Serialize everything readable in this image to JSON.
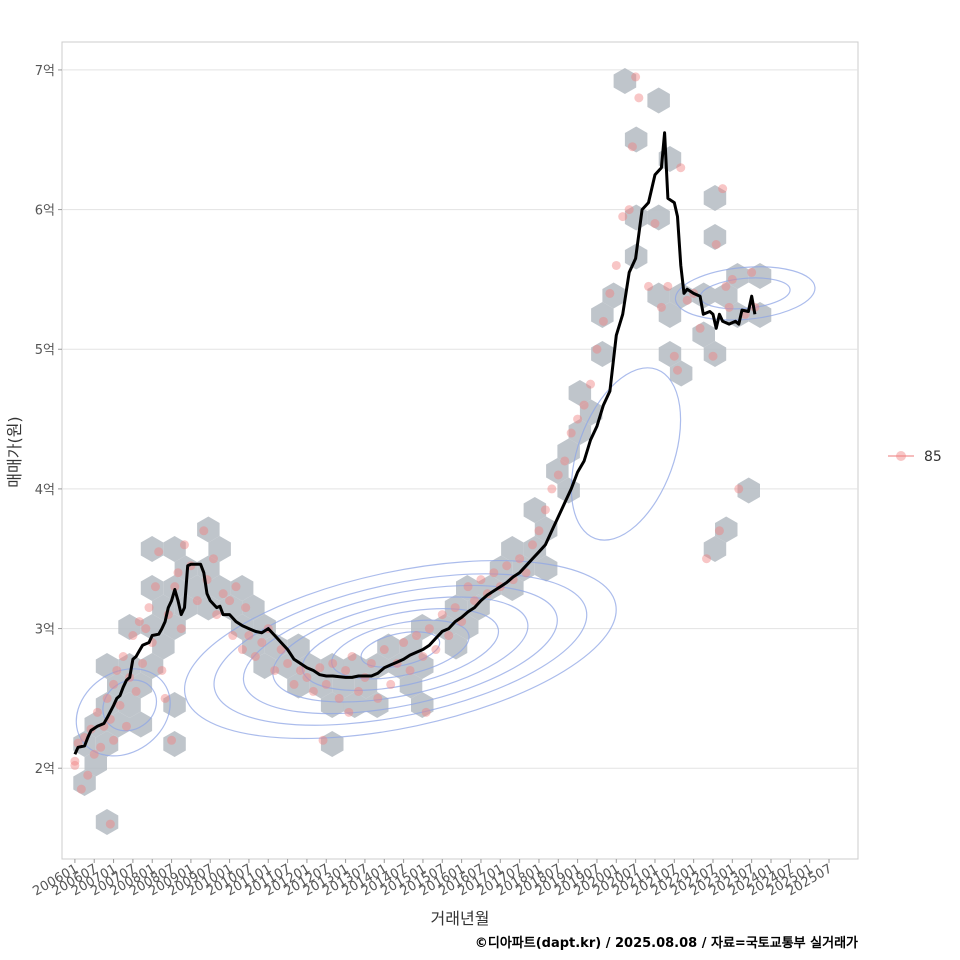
{
  "chart_data": {
    "type": "line",
    "xlabel": "거래년월",
    "ylabel": "매매가(원)",
    "caption": "©디아파트(dapt.kr) / 2025.08.08 / 자료=국토교통부 실거래가",
    "x_ticks": [
      "200601",
      "200607",
      "200701",
      "200707",
      "200801",
      "200807",
      "200901",
      "200907",
      "201001",
      "201007",
      "201101",
      "201107",
      "201201",
      "201207",
      "201301",
      "201307",
      "201401",
      "201407",
      "201501",
      "201507",
      "201601",
      "201607",
      "201701",
      "201707",
      "201801",
      "201807",
      "201901",
      "201907",
      "202001",
      "202007",
      "202101",
      "202107",
      "202201",
      "202207",
      "202301",
      "202307",
      "202401",
      "202407",
      "202501",
      "202507"
    ],
    "y_ticks": [
      {
        "value": 2,
        "label": "2억"
      },
      {
        "value": 3,
        "label": "3억"
      },
      {
        "value": 4,
        "label": "4억"
      },
      {
        "value": 5,
        "label": "5억"
      },
      {
        "value": 6,
        "label": "6억"
      },
      {
        "value": 7,
        "label": "7억"
      }
    ],
    "xlim": [
      "200509",
      "202604"
    ],
    "ylim": [
      1.35,
      7.2
    ],
    "grid": true,
    "legend": {
      "position": "right",
      "label": "85"
    },
    "colors": {
      "line": "#000000",
      "points": "#f08080",
      "hex": "#b4bbc2",
      "contour": "#8fa6e6",
      "grid": "#e3e3e3"
    },
    "series": [
      {
        "values": [
          [
            "200601",
            2.1
          ],
          [
            "200602",
            2.15
          ],
          [
            "200604",
            2.16
          ],
          [
            "200605",
            2.22
          ],
          [
            "200606",
            2.27
          ],
          [
            "200608",
            2.3
          ],
          [
            "200610",
            2.32
          ],
          [
            "200611",
            2.36
          ],
          [
            "200701",
            2.45
          ],
          [
            "200702",
            2.5
          ],
          [
            "200703",
            2.52
          ],
          [
            "200704",
            2.58
          ],
          [
            "200705",
            2.63
          ],
          [
            "200706",
            2.65
          ],
          [
            "200707",
            2.78
          ],
          [
            "200708",
            2.8
          ],
          [
            "200709",
            2.84
          ],
          [
            "200710",
            2.88
          ],
          [
            "200712",
            2.9
          ],
          [
            "200801",
            2.95
          ],
          [
            "200803",
            2.96
          ],
          [
            "200804",
            3.0
          ],
          [
            "200805",
            3.05
          ],
          [
            "200806",
            3.15
          ],
          [
            "200807",
            3.2
          ],
          [
            "200808",
            3.28
          ],
          [
            "200809",
            3.2
          ],
          [
            "200810",
            3.1
          ],
          [
            "200811",
            3.15
          ],
          [
            "200812",
            3.45
          ],
          [
            "200901",
            3.46
          ],
          [
            "200904",
            3.46
          ],
          [
            "200905",
            3.4
          ],
          [
            "200906",
            3.25
          ],
          [
            "200907",
            3.2
          ],
          [
            "200909",
            3.15
          ],
          [
            "200910",
            3.16
          ],
          [
            "200911",
            3.1
          ],
          [
            "201001",
            3.1
          ],
          [
            "201003",
            3.05
          ],
          [
            "201005",
            3.02
          ],
          [
            "201007",
            3.0
          ],
          [
            "201009",
            2.98
          ],
          [
            "201011",
            2.97
          ],
          [
            "201101",
            3.0
          ],
          [
            "201103",
            2.95
          ],
          [
            "201105",
            2.9
          ],
          [
            "201107",
            2.85
          ],
          [
            "201109",
            2.78
          ],
          [
            "201111",
            2.75
          ],
          [
            "201201",
            2.72
          ],
          [
            "201203",
            2.7
          ],
          [
            "201205",
            2.67
          ],
          [
            "201207",
            2.66
          ],
          [
            "201209",
            2.66
          ],
          [
            "201301",
            2.65
          ],
          [
            "201303",
            2.65
          ],
          [
            "201305",
            2.66
          ],
          [
            "201307",
            2.66
          ],
          [
            "201309",
            2.66
          ],
          [
            "201311",
            2.68
          ],
          [
            "201401",
            2.72
          ],
          [
            "201403",
            2.74
          ],
          [
            "201405",
            2.76
          ],
          [
            "201407",
            2.78
          ],
          [
            "201409",
            2.81
          ],
          [
            "201411",
            2.83
          ],
          [
            "201501",
            2.85
          ],
          [
            "201503",
            2.88
          ],
          [
            "201505",
            2.93
          ],
          [
            "201507",
            2.98
          ],
          [
            "201509",
            3.0
          ],
          [
            "201511",
            3.05
          ],
          [
            "201601",
            3.08
          ],
          [
            "201603",
            3.12
          ],
          [
            "201605",
            3.15
          ],
          [
            "201607",
            3.2
          ],
          [
            "201609",
            3.24
          ],
          [
            "201611",
            3.27
          ],
          [
            "201701",
            3.3
          ],
          [
            "201703",
            3.33
          ],
          [
            "201705",
            3.37
          ],
          [
            "201707",
            3.4
          ],
          [
            "201709",
            3.45
          ],
          [
            "201711",
            3.5
          ],
          [
            "201801",
            3.55
          ],
          [
            "201803",
            3.6
          ],
          [
            "201805",
            3.7
          ],
          [
            "201807",
            3.8
          ],
          [
            "201809",
            3.9
          ],
          [
            "201811",
            4.0
          ],
          [
            "201901",
            4.12
          ],
          [
            "201903",
            4.2
          ],
          [
            "201905",
            4.35
          ],
          [
            "201907",
            4.45
          ],
          [
            "201909",
            4.6
          ],
          [
            "201911",
            4.7
          ],
          [
            "202001",
            5.1
          ],
          [
            "202003",
            5.25
          ],
          [
            "202005",
            5.55
          ],
          [
            "202007",
            5.65
          ],
          [
            "202009",
            6.0
          ],
          [
            "202011",
            6.05
          ],
          [
            "202101",
            6.25
          ],
          [
            "202103",
            6.3
          ],
          [
            "202104",
            6.55
          ],
          [
            "202105",
            6.08
          ],
          [
            "202107",
            6.05
          ],
          [
            "202108",
            5.95
          ],
          [
            "202109",
            5.6
          ],
          [
            "202110",
            5.4
          ],
          [
            "202111",
            5.43
          ],
          [
            "202201",
            5.4
          ],
          [
            "202203",
            5.38
          ],
          [
            "202204",
            5.25
          ],
          [
            "202206",
            5.27
          ],
          [
            "202207",
            5.25
          ],
          [
            "202208",
            5.15
          ],
          [
            "202209",
            5.25
          ],
          [
            "202210",
            5.2
          ],
          [
            "202212",
            5.18
          ],
          [
            "202302",
            5.2
          ],
          [
            "202303",
            5.18
          ],
          [
            "202304",
            5.28
          ],
          [
            "202306",
            5.27
          ],
          [
            "202307",
            5.38
          ],
          [
            "202308",
            5.25
          ]
        ]
      }
    ],
    "points": [
      [
        "200601",
        2.05
      ],
      [
        "200601",
        2.02
      ],
      [
        "200602",
        2.18
      ],
      [
        "200603",
        1.85
      ],
      [
        "200604",
        2.22
      ],
      [
        "200605",
        1.95
      ],
      [
        "200606",
        2.28
      ],
      [
        "200607",
        2.1
      ],
      [
        "200608",
        2.4
      ],
      [
        "200609",
        2.15
      ],
      [
        "200610",
        2.3
      ],
      [
        "200611",
        2.5
      ],
      [
        "200612",
        2.35
      ],
      [
        "200612",
        1.6
      ],
      [
        "200701",
        2.6
      ],
      [
        "200701",
        2.2
      ],
      [
        "200702",
        2.7
      ],
      [
        "200703",
        2.45
      ],
      [
        "200704",
        2.8
      ],
      [
        "200705",
        2.3
      ],
      [
        "200706",
        2.65
      ],
      [
        "200707",
        2.95
      ],
      [
        "200708",
        2.55
      ],
      [
        "200709",
        3.05
      ],
      [
        "200710",
        2.75
      ],
      [
        "200711",
        3.0
      ],
      [
        "200712",
        3.15
      ],
      [
        "200801",
        2.9
      ],
      [
        "200802",
        3.3
      ],
      [
        "200803",
        3.55
      ],
      [
        "200804",
        2.7
      ],
      [
        "200805",
        2.5
      ],
      [
        "200806",
        3.1
      ],
      [
        "200807",
        2.2
      ],
      [
        "200808",
        3.3
      ],
      [
        "200809",
        3.4
      ],
      [
        "200810",
        3.0
      ],
      [
        "200811",
        3.6
      ],
      [
        "200901",
        3.45
      ],
      [
        "200903",
        3.2
      ],
      [
        "200905",
        3.7
      ],
      [
        "200906",
        3.35
      ],
      [
        "200908",
        3.5
      ],
      [
        "200909",
        3.1
      ],
      [
        "200911",
        3.25
      ],
      [
        "201001",
        3.2
      ],
      [
        "201002",
        2.95
      ],
      [
        "201003",
        3.3
      ],
      [
        "201005",
        2.85
      ],
      [
        "201006",
        3.15
      ],
      [
        "201007",
        2.95
      ],
      [
        "201009",
        2.8
      ],
      [
        "201011",
        2.9
      ],
      [
        "201101",
        3.0
      ],
      [
        "201103",
        2.7
      ],
      [
        "201105",
        2.85
      ],
      [
        "201107",
        2.75
      ],
      [
        "201109",
        2.6
      ],
      [
        "201111",
        2.7
      ],
      [
        "201201",
        2.65
      ],
      [
        "201203",
        2.55
      ],
      [
        "201205",
        2.72
      ],
      [
        "201206",
        2.2
      ],
      [
        "201207",
        2.6
      ],
      [
        "201209",
        2.75
      ],
      [
        "201211",
        2.5
      ],
      [
        "201301",
        2.7
      ],
      [
        "201302",
        2.4
      ],
      [
        "201303",
        2.8
      ],
      [
        "201305",
        2.55
      ],
      [
        "201307",
        2.65
      ],
      [
        "201309",
        2.75
      ],
      [
        "201311",
        2.5
      ],
      [
        "201401",
        2.85
      ],
      [
        "201403",
        2.6
      ],
      [
        "201405",
        2.75
      ],
      [
        "201407",
        2.9
      ],
      [
        "201409",
        2.7
      ],
      [
        "201411",
        2.95
      ],
      [
        "201501",
        2.8
      ],
      [
        "201502",
        2.4
      ],
      [
        "201503",
        3.0
      ],
      [
        "201505",
        2.85
      ],
      [
        "201507",
        3.1
      ],
      [
        "201509",
        2.95
      ],
      [
        "201511",
        3.15
      ],
      [
        "201601",
        3.05
      ],
      [
        "201603",
        3.3
      ],
      [
        "201605",
        3.2
      ],
      [
        "201607",
        3.35
      ],
      [
        "201609",
        3.25
      ],
      [
        "201611",
        3.4
      ],
      [
        "201701",
        3.3
      ],
      [
        "201703",
        3.45
      ],
      [
        "201705",
        3.35
      ],
      [
        "201707",
        3.5
      ],
      [
        "201709",
        3.4
      ],
      [
        "201711",
        3.6
      ],
      [
        "201801",
        3.7
      ],
      [
        "201803",
        3.85
      ],
      [
        "201805",
        4.0
      ],
      [
        "201807",
        4.1
      ],
      [
        "201809",
        4.2
      ],
      [
        "201811",
        4.4
      ],
      [
        "201901",
        4.5
      ],
      [
        "201903",
        4.6
      ],
      [
        "201905",
        4.75
      ],
      [
        "201907",
        5.0
      ],
      [
        "201909",
        5.2
      ],
      [
        "201911",
        5.4
      ],
      [
        "202001",
        5.6
      ],
      [
        "202003",
        5.95
      ],
      [
        "202005",
        6.0
      ],
      [
        "202006",
        6.45
      ],
      [
        "202007",
        6.95
      ],
      [
        "202008",
        6.8
      ],
      [
        "202011",
        5.45
      ],
      [
        "202101",
        5.9
      ],
      [
        "202103",
        5.3
      ],
      [
        "202105",
        5.45
      ],
      [
        "202107",
        4.95
      ],
      [
        "202108",
        4.85
      ],
      [
        "202109",
        6.3
      ],
      [
        "202111",
        5.35
      ],
      [
        "202201",
        5.4
      ],
      [
        "202203",
        5.15
      ],
      [
        "202205",
        3.5
      ],
      [
        "202207",
        4.95
      ],
      [
        "202208",
        5.75
      ],
      [
        "202209",
        3.7
      ],
      [
        "202210",
        6.15
      ],
      [
        "202211",
        5.45
      ],
      [
        "202212",
        5.3
      ],
      [
        "202301",
        5.5
      ],
      [
        "202303",
        4.0
      ],
      [
        "202305",
        5.25
      ],
      [
        "202307",
        5.55
      ],
      [
        "202308",
        5.3
      ]
    ]
  }
}
